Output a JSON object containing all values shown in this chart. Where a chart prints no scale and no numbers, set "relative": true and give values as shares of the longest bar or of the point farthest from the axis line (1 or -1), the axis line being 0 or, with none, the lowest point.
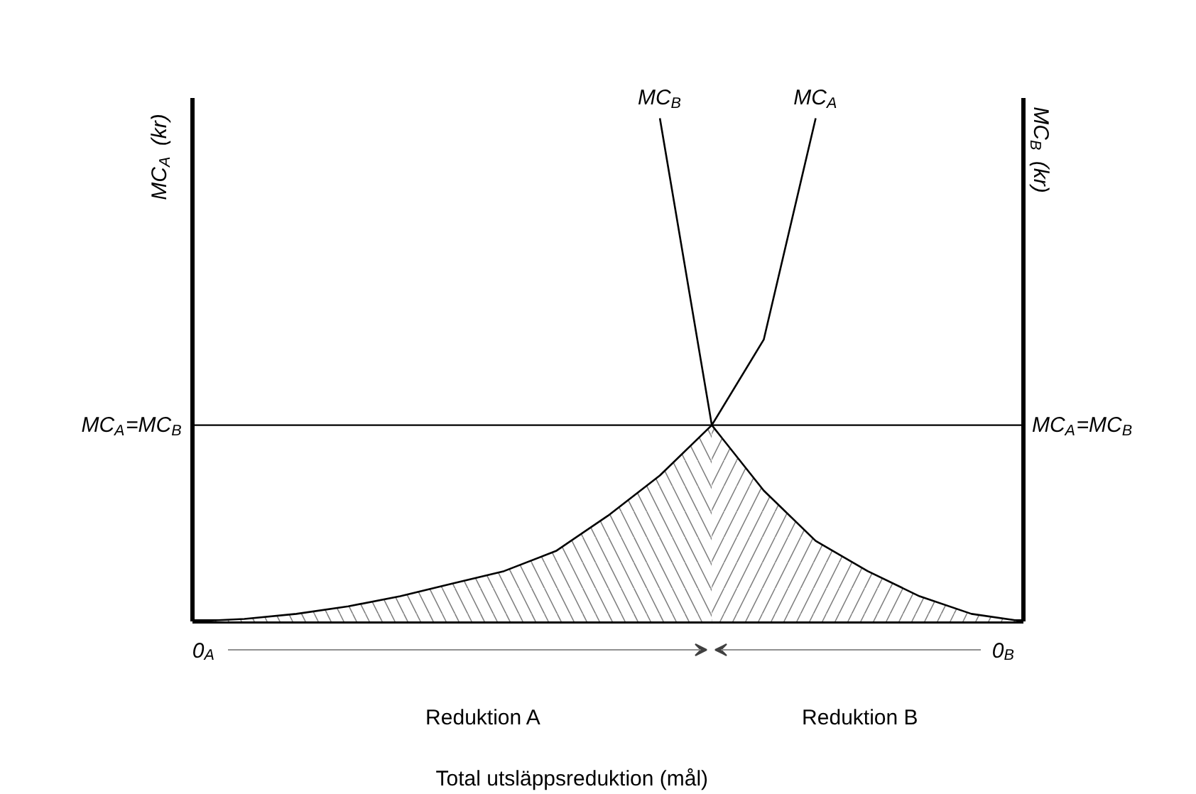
{
  "chart_data": {
    "type": "line",
    "relative": true,
    "ylabel": "MC$_{A}$ (kr)",
    "y2label": "MC$_{B}$ (kr)",
    "categories": [
      null,
      null,
      null,
      null,
      null,
      null,
      null,
      null,
      null,
      null,
      null,
      null,
      null,
      null,
      null,
      null,
      null
    ],
    "series": [
      {
        "name": "MC$_{A}$",
        "color": "#000000",
        "values": [
          0,
          0.005,
          0.015,
          0.03,
          0.05,
          0.075,
          0.1,
          0.14,
          0.21,
          0.29,
          0.39,
          0.56,
          1.0,
          null,
          null,
          null,
          null
        ]
      },
      {
        "name": "MC$_{B}$",
        "color": "#000000",
        "values": [
          null,
          null,
          null,
          null,
          null,
          null,
          null,
          null,
          null,
          1.0,
          0.39,
          0.26,
          0.16,
          0.1,
          0.05,
          0.015,
          0
        ]
      },
      {
        "type": "area",
        "color": "#808080",
        "values": [
          0,
          0.005,
          0.015,
          0.03,
          0.05,
          0.075,
          0.1,
          0.14,
          0.21,
          0.29,
          0.39,
          null,
          null,
          null,
          null,
          null,
          null
        ]
      },
      {
        "type": "area",
        "color": "#808080",
        "values": [
          null,
          null,
          null,
          null,
          null,
          null,
          null,
          null,
          null,
          null,
          0.39,
          0.26,
          0.16,
          0.1,
          0.05,
          0.015,
          0
        ]
      }
    ],
    "ref_lines": [
      {
        "axis": "y",
        "value": 0.39,
        "label": "MC$_{A}$=MC$_{B}$"
      }
    ],
    "annotations": [
      "MC$_{A}$=MC$_{B}$",
      "0$_{A}$",
      "0$_{B}$",
      "Reduktion A",
      "Reduktion B",
      "Total utsläppsreduktion (mål)"
    ]
  }
}
